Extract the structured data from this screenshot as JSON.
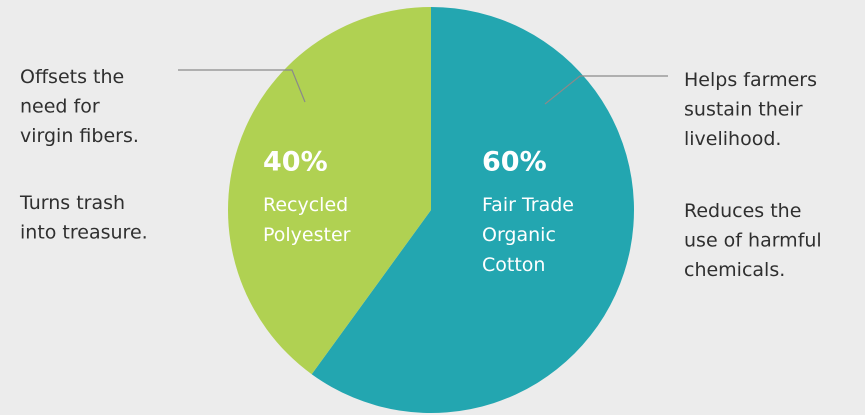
{
  "chart_data": {
    "type": "pie",
    "categories": [
      "Fair Trade\nOrganic\nCotton",
      "Recycled\nPolyester"
    ],
    "values": [
      60,
      40
    ],
    "value_labels": [
      "60%",
      "40%"
    ],
    "colors": [
      "#23a6b0",
      "#b0d152"
    ],
    "annotations": [
      [
        "Helps farmers\nsustain their\nlivelihood.",
        "Reduces the\nuse of harmful\nchemicals."
      ],
      [
        "Offsets the\nneed for\nvirgin fibers.",
        "Turns trash\ninto treasure."
      ]
    ]
  }
}
